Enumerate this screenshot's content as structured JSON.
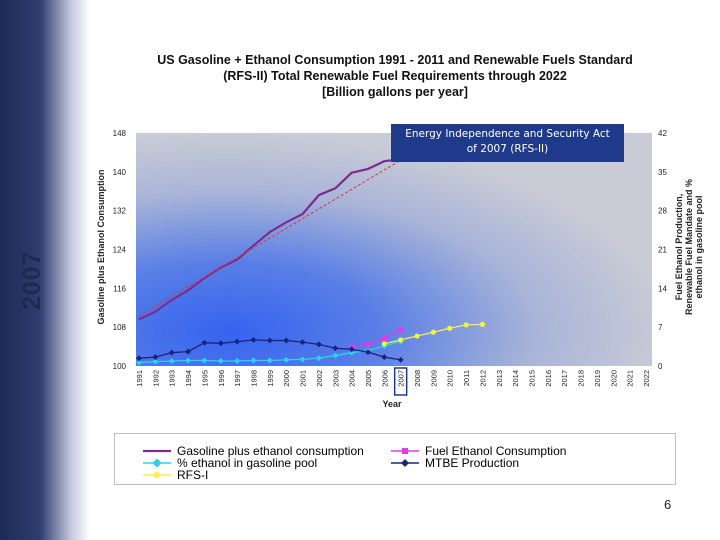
{
  "slide": {
    "side_label": "2007",
    "page_number": "6"
  },
  "annotation": {
    "line1": "Energy Independence and Security Act",
    "line2": "of 2007 (RFS-II)"
  },
  "chart_data": {
    "type": "line",
    "title_lines": [
      "US Gasoline + Ethanol Consumption 1991 - 2011 and Renewable Fuels Standard",
      "(RFS-II) Total Renewable Fuel Requirements through 2022",
      "[Billion gallons per year]"
    ],
    "xlabel": "Year",
    "ylabel": "Gasoline plus Ethanol Consumption",
    "ylabel_right_lines": [
      "Fuel Ethanol Production,",
      "Renewable Fuel Mandate and %",
      "ethanol in gasoline pool"
    ],
    "categories": [
      "1991",
      "1992",
      "1993",
      "1994",
      "1995",
      "1996",
      "1997",
      "1998",
      "1999",
      "2000",
      "2001",
      "2002",
      "2003",
      "2004",
      "2005",
      "2006",
      "2007",
      "2008",
      "2009",
      "2010",
      "2011",
      "2012",
      "2013",
      "2014",
      "2015",
      "2016",
      "2017",
      "2018",
      "2019",
      "2020",
      "2021",
      "2022"
    ],
    "highlight_category": "2007",
    "ylim_left": [
      100,
      148
    ],
    "yticks_left": [
      100,
      108,
      116,
      124,
      132,
      140,
      148
    ],
    "ylim_right": [
      0,
      42
    ],
    "yticks_right": [
      0,
      7,
      14,
      21,
      28,
      35,
      42
    ],
    "background_gradient": true,
    "legend_position": "bottom",
    "series": [
      {
        "name": "Gasoline plus ethanol consumption",
        "axis": "left",
        "color": "#7b2c8f",
        "marker": "none",
        "x": [
          "1991",
          "1992",
          "1993",
          "1994",
          "1995",
          "1996",
          "1997",
          "1998",
          "1999",
          "2000",
          "2001",
          "2002",
          "2003",
          "2004",
          "2005",
          "2006",
          "2007"
        ],
        "values": [
          109.6,
          111.2,
          113.6,
          115.6,
          118.1,
          120.3,
          121.9,
          124.8,
          127.6,
          129.6,
          131.3,
          135.2,
          136.6,
          139.8,
          140.6,
          142.2,
          142.6
        ]
      },
      {
        "name": "Fuel Ethanol Consumption",
        "axis": "right",
        "color": "#e23be6",
        "marker": "square",
        "x": [
          "2004",
          "2005",
          "2006",
          "2007"
        ],
        "values": [
          3.4,
          3.9,
          5.0,
          6.5
        ]
      },
      {
        "name": "% ethanol in gasoline pool",
        "axis": "right",
        "color": "#2ad3ea",
        "marker": "diamond",
        "x": [
          "1991",
          "1992",
          "1993",
          "1994",
          "1995",
          "1996",
          "1997",
          "1998",
          "1999",
          "2000",
          "2001",
          "2002",
          "2003",
          "2004",
          "2005",
          "2006",
          "2007"
        ],
        "values": [
          0.6,
          0.8,
          0.9,
          1.0,
          1.0,
          0.9,
          0.9,
          1.0,
          1.0,
          1.1,
          1.2,
          1.4,
          1.9,
          2.4,
          2.8,
          3.6,
          4.4
        ]
      },
      {
        "name": "MTBE Production",
        "axis": "right",
        "color": "#1b237a",
        "marker": "diamond",
        "x": [
          "1991",
          "1992",
          "1993",
          "1994",
          "1995",
          "1996",
          "1997",
          "1998",
          "1999",
          "2000",
          "2001",
          "2002",
          "2003",
          "2004",
          "2005",
          "2006",
          "2007"
        ],
        "values": [
          1.4,
          1.6,
          2.4,
          2.6,
          4.2,
          4.1,
          4.4,
          4.7,
          4.6,
          4.6,
          4.3,
          3.9,
          3.2,
          3.0,
          2.5,
          1.6,
          1.1
        ]
      },
      {
        "name": "RFS-I",
        "axis": "right",
        "color": "#f2f24a",
        "marker": "circle",
        "x": [
          "2006",
          "2007",
          "2008",
          "2009",
          "2010",
          "2011",
          "2012"
        ],
        "values": [
          4.0,
          4.7,
          5.4,
          6.1,
          6.8,
          7.4,
          7.5
        ]
      },
      {
        "name": "",
        "axis": "left",
        "color": "#d63a3a",
        "marker": "none",
        "dashed": true,
        "x": [
          "1991",
          "2007"
        ],
        "values": [
          110.3,
          142.4
        ]
      }
    ]
  },
  "colors": {
    "plot_bg_top": "#c7cad6",
    "plot_bg_blue": "#3a64e8",
    "annotation_bg": "#1f3a8a"
  }
}
